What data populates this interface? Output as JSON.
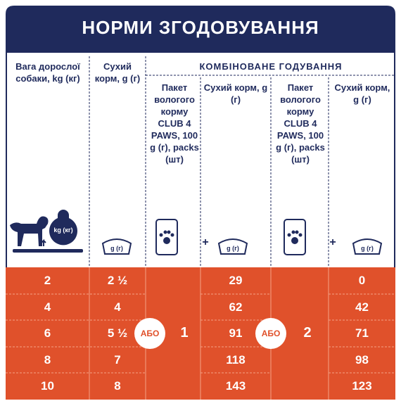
{
  "header": {
    "title": "НОРМИ ЗГОДОВУВАННЯ"
  },
  "table": {
    "columns": {
      "weight": "Вага дорослої собаки, kg (кг)",
      "dry": "Сухий корм, g (г)",
      "combined": "КОМБІНОВАНЕ ГОДУВАННЯ",
      "packet_1": "Пакет вологого корму CLUB 4 PAWS, 100 g (г), packs (шт)",
      "dry_1": "Сухий корм, g (г)",
      "packet_2": "Пакет вологого корму CLUB 4 PAWS, 100 g (г), packs (шт)",
      "dry_2": "Сухий корм, g (г)"
    },
    "icons": {
      "kettlebell": "kg (кг)",
      "bowls": [
        "g (г)",
        "g (г)",
        "g (г)"
      ],
      "plus": [
        "+",
        "+"
      ]
    },
    "rows": [
      [
        2,
        "2 ½",
        29,
        0
      ],
      [
        4,
        4,
        62,
        42
      ],
      [
        6,
        "5 ½",
        91,
        71
      ],
      [
        8,
        7,
        118,
        98
      ],
      [
        10,
        8,
        143,
        123
      ]
    ],
    "packs": [
      1,
      2
    ],
    "or": [
      "АБО",
      "АБО"
    ]
  }
}
